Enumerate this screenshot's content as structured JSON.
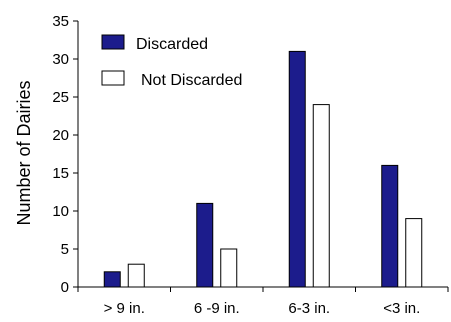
{
  "chart_data": {
    "type": "bar",
    "title": "",
    "xlabel": "",
    "ylabel": "Number of Dairies",
    "ylim": [
      0,
      35
    ],
    "yticks": [
      0,
      5,
      10,
      15,
      20,
      25,
      30,
      35
    ],
    "categories": [
      "> 9 in.",
      "6 -9 in.",
      "6-3 in.",
      "<3 in."
    ],
    "series": [
      {
        "name": "Discarded",
        "values": [
          2,
          11,
          31,
          16
        ],
        "color": "#1c1c8c"
      },
      {
        "name": "Not Discarded",
        "values": [
          3,
          5,
          24,
          9
        ],
        "color": "#ffffff"
      }
    ],
    "legend_position": "top-left",
    "grid": false
  }
}
